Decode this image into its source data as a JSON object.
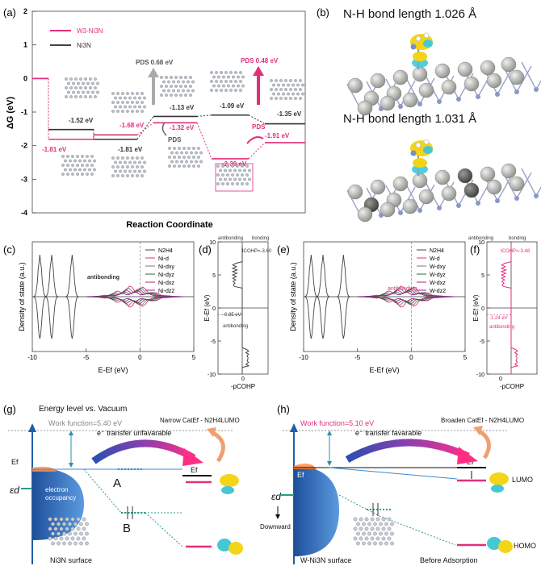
{
  "panel_a": {
    "label": "(a)",
    "legend": {
      "series_pink": "W3-Ni3N",
      "series_black": "Ni3N"
    },
    "y_axis": {
      "title": "ΔG (eV)",
      "ticks": [
        "2",
        "1",
        "0",
        "-1",
        "-2",
        "-3",
        "-4"
      ]
    },
    "x_axis": {
      "title": "Reaction Coordinate"
    },
    "chart_data": {
      "type": "line",
      "title": "",
      "xlabel": "Reaction Coordinate",
      "ylabel": "ΔG (eV)",
      "ylim": [
        -4,
        2
      ],
      "series": [
        {
          "name": "Ni3N",
          "values": [
            0,
            -1.52,
            -1.81,
            -1.13,
            -1.09,
            -1.35
          ]
        },
        {
          "name": "W3-Ni3N",
          "values": [
            0,
            -1.81,
            -1.68,
            -1.32,
            -2.39,
            -1.91
          ]
        }
      ]
    },
    "value_labels": {
      "black": [
        "-1.52 eV",
        "-1.81 eV",
        "-1.13 eV",
        "-1.09 eV",
        "-1.35 eV"
      ],
      "pink": [
        "-1.81 eV",
        "-1.68 eV",
        "-1.32 eV",
        "-2.39 eV",
        "-1.91 eV"
      ]
    },
    "pds_black": "PDS 0.68 eV",
    "pds_pink": "PDS 0.48 eV",
    "pds_small_black": "PDS",
    "pds_small_pink": "PDS"
  },
  "panel_b": {
    "label": "(b)",
    "top_text": "N-H bond length 1.026 Å",
    "bottom_text": "N-H bond length 1.031 Å"
  },
  "panel_c": {
    "label": "(c)",
    "ylabel": "Density of state (a.u.)",
    "xlabel": "E-Ef (eV)",
    "xticks": [
      "-10",
      "-5",
      "0",
      "5"
    ],
    "annotation": "antibonding",
    "legend": [
      "N2H4",
      "Ni-d",
      "Ni-dxy",
      "Ni-dyz",
      "Ni-dxz",
      "Ni-dz2"
    ]
  },
  "panel_d": {
    "label": "(d)",
    "header_left": "antibonding",
    "header_right": "bonding",
    "icohp": "ICOHP=-3.60",
    "ylabel": "E-Ef (eV)",
    "xlabel": "-pCOHP",
    "yticks": [
      "10",
      "5",
      "0",
      "-5",
      "-10"
    ],
    "xtick": "0",
    "level": "-0.85 eV",
    "annotation": "antibonding"
  },
  "panel_e": {
    "label": "(e)",
    "ylabel": "Density of state (a.u.)",
    "xlabel": "E-Ef (eV)",
    "xticks": [
      "-10",
      "-5",
      "0",
      "5"
    ],
    "annotation": "antibonding",
    "legend": [
      "N2H4",
      "W-d",
      "W-dxy",
      "W-dyz",
      "W-dxz",
      "W-dz2"
    ]
  },
  "panel_f": {
    "label": "(f)",
    "header_left": "antibonding",
    "header_right": "bonding",
    "icohp": "ICOHP=-3.48",
    "ylabel": "E-Ef (eV)",
    "xlabel": "-pCOHP",
    "yticks": [
      "10",
      "5",
      "0",
      "-5",
      "-10"
    ],
    "xtick": "0",
    "level": "-1.24 eV",
    "annotation": "antibonding"
  },
  "panel_g": {
    "label": "(g)",
    "title": "Energy level vs. Vacuum",
    "work_function": "Work function=5.40 eV",
    "transfer": "e⁻ transfer unfavarable",
    "narrow": "Narrow CatEf - N2H4LUMO",
    "marker_a": "A",
    "marker_b": "B",
    "ef": "Ef",
    "ef_right": "Ef",
    "ed": "εd",
    "electron": "electron",
    "occupancy": "occupancy",
    "surface": "Ni3N surface"
  },
  "panel_h": {
    "label": "(h)",
    "work_function": "Work function=5.10 eV",
    "transfer": "e⁻ transfer favarable",
    "broaden": "Broaden CatEf - N2H4LUMO",
    "ef": "Ef",
    "ef_right": "Ef",
    "ed": "εd",
    "downward": "Downward",
    "lumo": "LUMO",
    "homo": "HOMO",
    "surface": "W-Ni3N surface",
    "before": "Before Adsorption"
  },
  "colors": {
    "pink": "#e0307a",
    "black": "#333333",
    "blue": "#1f5fa8",
    "grey": "#999999"
  }
}
